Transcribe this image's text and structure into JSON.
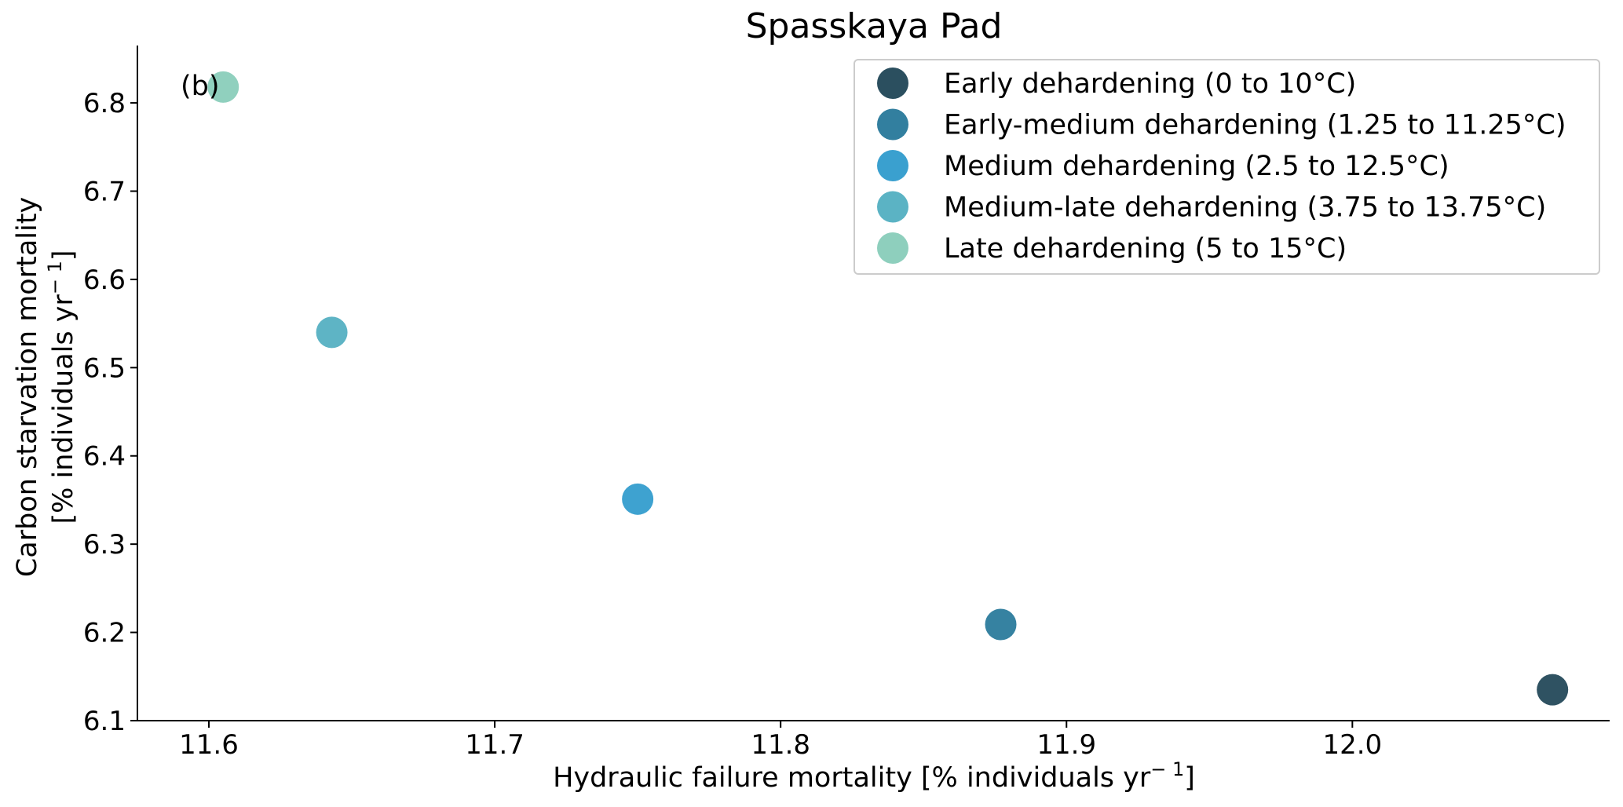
{
  "chart_data": {
    "type": "scatter",
    "title": "Spasskaya Pad",
    "panel_label": "(b)",
    "xlabel": "Hydraulic failure mortality [% individuals yr",
    "xlabel_sup": "− 1",
    "xlabel_end": "]",
    "ylabel_line1": "Carbon starvation mortality",
    "ylabel_line2": "[% individuals yr",
    "ylabel_sup": "− 1",
    "ylabel_end": "]",
    "xlim": [
      11.575,
      12.09
    ],
    "ylim": [
      6.1,
      6.865
    ],
    "xticks": [
      11.6,
      11.7,
      11.8,
      11.9,
      12.0
    ],
    "xtick_labels": [
      "11.6",
      "11.7",
      "11.8",
      "11.9",
      "12.0"
    ],
    "yticks": [
      6.1,
      6.2,
      6.3,
      6.4,
      6.5,
      6.6,
      6.7,
      6.8
    ],
    "ytick_labels": [
      "6.1",
      "6.2",
      "6.3",
      "6.4",
      "6.5",
      "6.6",
      "6.7",
      "6.8"
    ],
    "grid": false,
    "legend_position": "top-right",
    "series": [
      {
        "name": "Early dehardening (0 to 10°C)",
        "color": "#2b4f5f",
        "x": [
          12.07
        ],
        "y": [
          6.135
        ]
      },
      {
        "name": "Early-medium dehardening (1.25 to 11.25°C)",
        "color": "#327f9f",
        "x": [
          11.877
        ],
        "y": [
          6.209
        ]
      },
      {
        "name": "Medium dehardening  (2.5 to 12.5°C)",
        "color": "#3aa0cf",
        "x": [
          11.75
        ],
        "y": [
          6.351
        ]
      },
      {
        "name": "Medium-late dehardening (3.75 to 13.75°C)",
        "color": "#5bb3c4",
        "x": [
          11.643
        ],
        "y": [
          6.54
        ]
      },
      {
        "name": "Late dehardening (5 to 15°C)",
        "color": "#8ecfbd",
        "x": [
          11.605
        ],
        "y": [
          6.818
        ]
      }
    ]
  }
}
